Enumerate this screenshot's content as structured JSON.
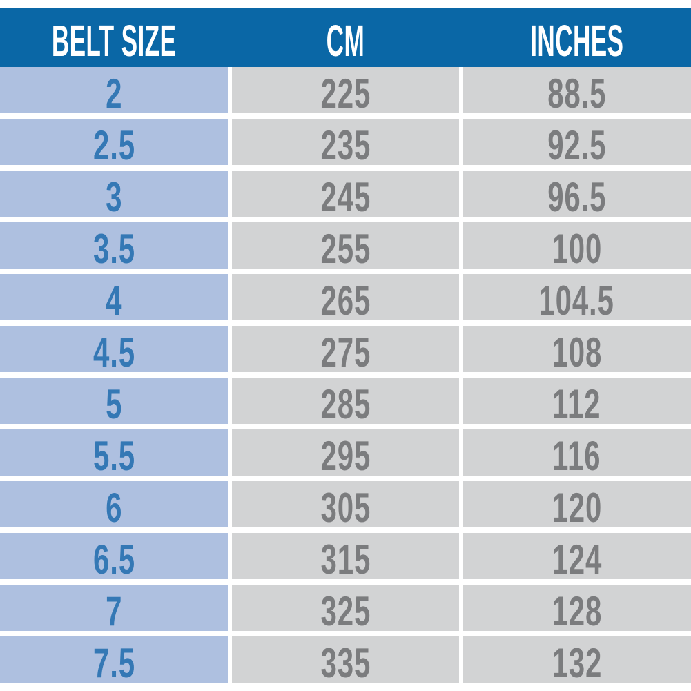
{
  "colors": {
    "header_bg": "#0a67a6",
    "header_text": "#ffffff",
    "size_column_bg": "#aec0e0",
    "size_column_text": "#3478b5",
    "data_column_bg": "#d2d3d4",
    "data_column_text": "#7b7c7e",
    "page_bg": "#ffffff",
    "separator": "#ffffff"
  },
  "chart_data": {
    "type": "table",
    "title": "",
    "columns": [
      "BELT SIZE",
      "CM",
      "INCHES"
    ],
    "rows": [
      [
        "2",
        "225",
        "88.5"
      ],
      [
        "2.5",
        "235",
        "92.5"
      ],
      [
        "3",
        "245",
        "96.5"
      ],
      [
        "3.5",
        "255",
        "100"
      ],
      [
        "4",
        "265",
        "104.5"
      ],
      [
        "4.5",
        "275",
        "108"
      ],
      [
        "5",
        "285",
        "112"
      ],
      [
        "5.5",
        "295",
        "116"
      ],
      [
        "6",
        "305",
        "120"
      ],
      [
        "6.5",
        "315",
        "124"
      ],
      [
        "7",
        "325",
        "128"
      ],
      [
        "7.5",
        "335",
        "132"
      ]
    ]
  }
}
